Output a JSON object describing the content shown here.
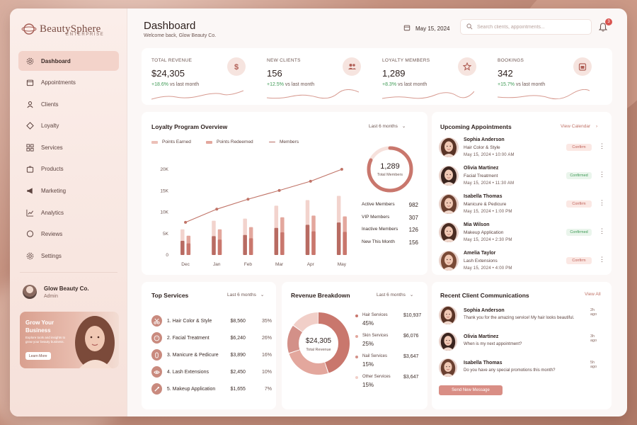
{
  "brand": {
    "name": "BeautySphere",
    "sub": "ENTERPRISE"
  },
  "colors": {
    "accent": "#c98a7e",
    "dark_bar": "#b86b62",
    "light_bar": "#ecc0b8",
    "positive": "#3e9a55"
  },
  "sidebar": {
    "items": [
      {
        "label": "Dashboard",
        "icon": "gear-icon",
        "active": true
      },
      {
        "label": "Appointments",
        "icon": "calendar-icon"
      },
      {
        "label": "Clients",
        "icon": "user-icon"
      },
      {
        "label": "Loyalty",
        "icon": "tag-icon"
      },
      {
        "label": "Services",
        "icon": "grid-icon"
      },
      {
        "label": "Products",
        "icon": "bag-icon"
      },
      {
        "label": "Marketing",
        "icon": "megaphone-icon"
      },
      {
        "label": "Analytics",
        "icon": "chart-icon"
      },
      {
        "label": "Reviews",
        "icon": "chat-icon"
      },
      {
        "label": "Settings",
        "icon": "settings-icon"
      }
    ],
    "profile": {
      "name": "Glow Beauty Co.",
      "role": "Admin"
    },
    "promo": {
      "title": "Grow Your Business",
      "text": "Explore tools and insights to grow your beauty business.",
      "button": "Learn More"
    }
  },
  "header": {
    "title": "Dashboard",
    "subtitle": "Welcome back, Glow Beauty Co.",
    "date": "May 15, 2024",
    "search_placeholder": "Search clients, appointments...",
    "notification_count": "3"
  },
  "kpis": [
    {
      "label": "TOTAL REVENUE",
      "value": "$24,305",
      "delta": "+18.6%",
      "suffix": "vs last month",
      "icon": "dollar-icon"
    },
    {
      "label": "NEW CLIENTS",
      "value": "156",
      "delta": "+12.5%",
      "suffix": "vs last month",
      "icon": "users-icon"
    },
    {
      "label": "LOYALTY MEMBERS",
      "value": "1,289",
      "delta": "+8.3%",
      "suffix": "vs last month",
      "icon": "star-icon"
    },
    {
      "label": "BOOKINGS",
      "value": "342",
      "delta": "+15.7%",
      "suffix": "vs last month",
      "icon": "calendar-icon"
    }
  ],
  "loyalty": {
    "title": "Loyalty Program Overview",
    "filter": "Last 6 months",
    "legend": [
      "Points Earned",
      "Points Redeemed",
      "Members"
    ],
    "ring_value": "1,289",
    "ring_label": "Total Members",
    "ring_fraction": 0.82,
    "stats": [
      {
        "label": "Active Members",
        "value": "982"
      },
      {
        "label": "VIP Members",
        "value": "307"
      },
      {
        "label": "Inactive Members",
        "value": "126"
      },
      {
        "label": "New This Month",
        "value": "156"
      }
    ]
  },
  "chart_data": {
    "type": "bar",
    "categories": [
      "Dec",
      "Jan",
      "Feb",
      "Mar",
      "Apr",
      "May"
    ],
    "ylim": [
      0,
      20000
    ],
    "yticks": [
      "0",
      "5K",
      "10K",
      "15K",
      "20K"
    ],
    "series": [
      {
        "name": "Points Earned",
        "type": "bar",
        "values": [
          6000,
          8000,
          8500,
          11500,
          12800,
          13800
        ]
      },
      {
        "name": "Points Redeemed",
        "type": "bar",
        "values": [
          4500,
          6000,
          6500,
          8800,
          9200,
          9000
        ]
      },
      {
        "name": "Members",
        "type": "line",
        "values": [
          8200,
          11500,
          14000,
          16200,
          18500,
          21500
        ]
      }
    ]
  },
  "appointments": {
    "title": "Upcoming Appointments",
    "link": "View Calendar",
    "items": [
      {
        "name": "Sophia Anderson",
        "service": "Hair Color & Style",
        "time": "May 15, 2024  •  10:00 AM",
        "status": "Confirm",
        "kind": "confirm"
      },
      {
        "name": "Olivia Martinez",
        "service": "Facial Treatment",
        "time": "May 15, 2024  •  11:30 AM",
        "status": "Confirmed",
        "kind": "confirmed"
      },
      {
        "name": "Isabella Thomas",
        "service": "Manicure & Pedicure",
        "time": "May 15, 2024  •  1:00 PM",
        "status": "Confirm",
        "kind": "confirm"
      },
      {
        "name": "Mia Wilson",
        "service": "Makeup Application",
        "time": "May 15, 2024  •  2:30 PM",
        "status": "Confirmed",
        "kind": "confirmed"
      },
      {
        "name": "Amelia Taylor",
        "service": "Lash Extensions",
        "time": "May 15, 2024  •  4:00 PM",
        "status": "Confirm",
        "kind": "confirm"
      }
    ]
  },
  "top_services": {
    "title": "Top Services",
    "filter": "Last 6 months",
    "items": [
      {
        "rank": "1.",
        "name": "Hair Color & Style",
        "value": "$8,560",
        "pct": "35%",
        "icon": "scissors-icon"
      },
      {
        "rank": "2.",
        "name": "Facial Treatment",
        "value": "$6,240",
        "pct": "26%",
        "icon": "face-icon"
      },
      {
        "rank": "3.",
        "name": "Manicure & Pedicure",
        "value": "$3,890",
        "pct": "16%",
        "icon": "nail-icon"
      },
      {
        "rank": "4.",
        "name": "Lash Extensions",
        "value": "$2,450",
        "pct": "10%",
        "icon": "eye-icon"
      },
      {
        "rank": "5.",
        "name": "Makeup Application",
        "value": "$1,655",
        "pct": "7%",
        "icon": "brush-icon"
      }
    ]
  },
  "revenue": {
    "title": "Revenue Breakdown",
    "filter": "Last 6 months",
    "total": "$24,305",
    "total_label": "Total Revenue",
    "items": [
      {
        "name": "Hair Services",
        "pct": "45%",
        "value": "$10,937",
        "fraction": 0.45,
        "color": "#c9776d"
      },
      {
        "name": "Skin Services",
        "pct": "25%",
        "value": "$6,076",
        "fraction": 0.25,
        "color": "#e3a79d"
      },
      {
        "name": "Nail Services",
        "pct": "15%",
        "value": "$3,647",
        "fraction": 0.15,
        "color": "#d39088"
      },
      {
        "name": "Other Services",
        "pct": "15%",
        "value": "$3,647",
        "fraction": 0.15,
        "color": "#f1cfc8"
      }
    ]
  },
  "communications": {
    "title": "Recent Client Communications",
    "link": "View All",
    "items": [
      {
        "name": "Sophia Anderson",
        "message": "Thank you for the amazing service! My hair looks beautiful.",
        "time": "2h ago"
      },
      {
        "name": "Olivia Martinez",
        "message": "When is my next appointment?",
        "time": "3h ago"
      },
      {
        "name": "Isabella Thomas",
        "message": "Do you have any special promotions this month?",
        "time": "5h ago"
      }
    ],
    "button": "Send New Message"
  }
}
